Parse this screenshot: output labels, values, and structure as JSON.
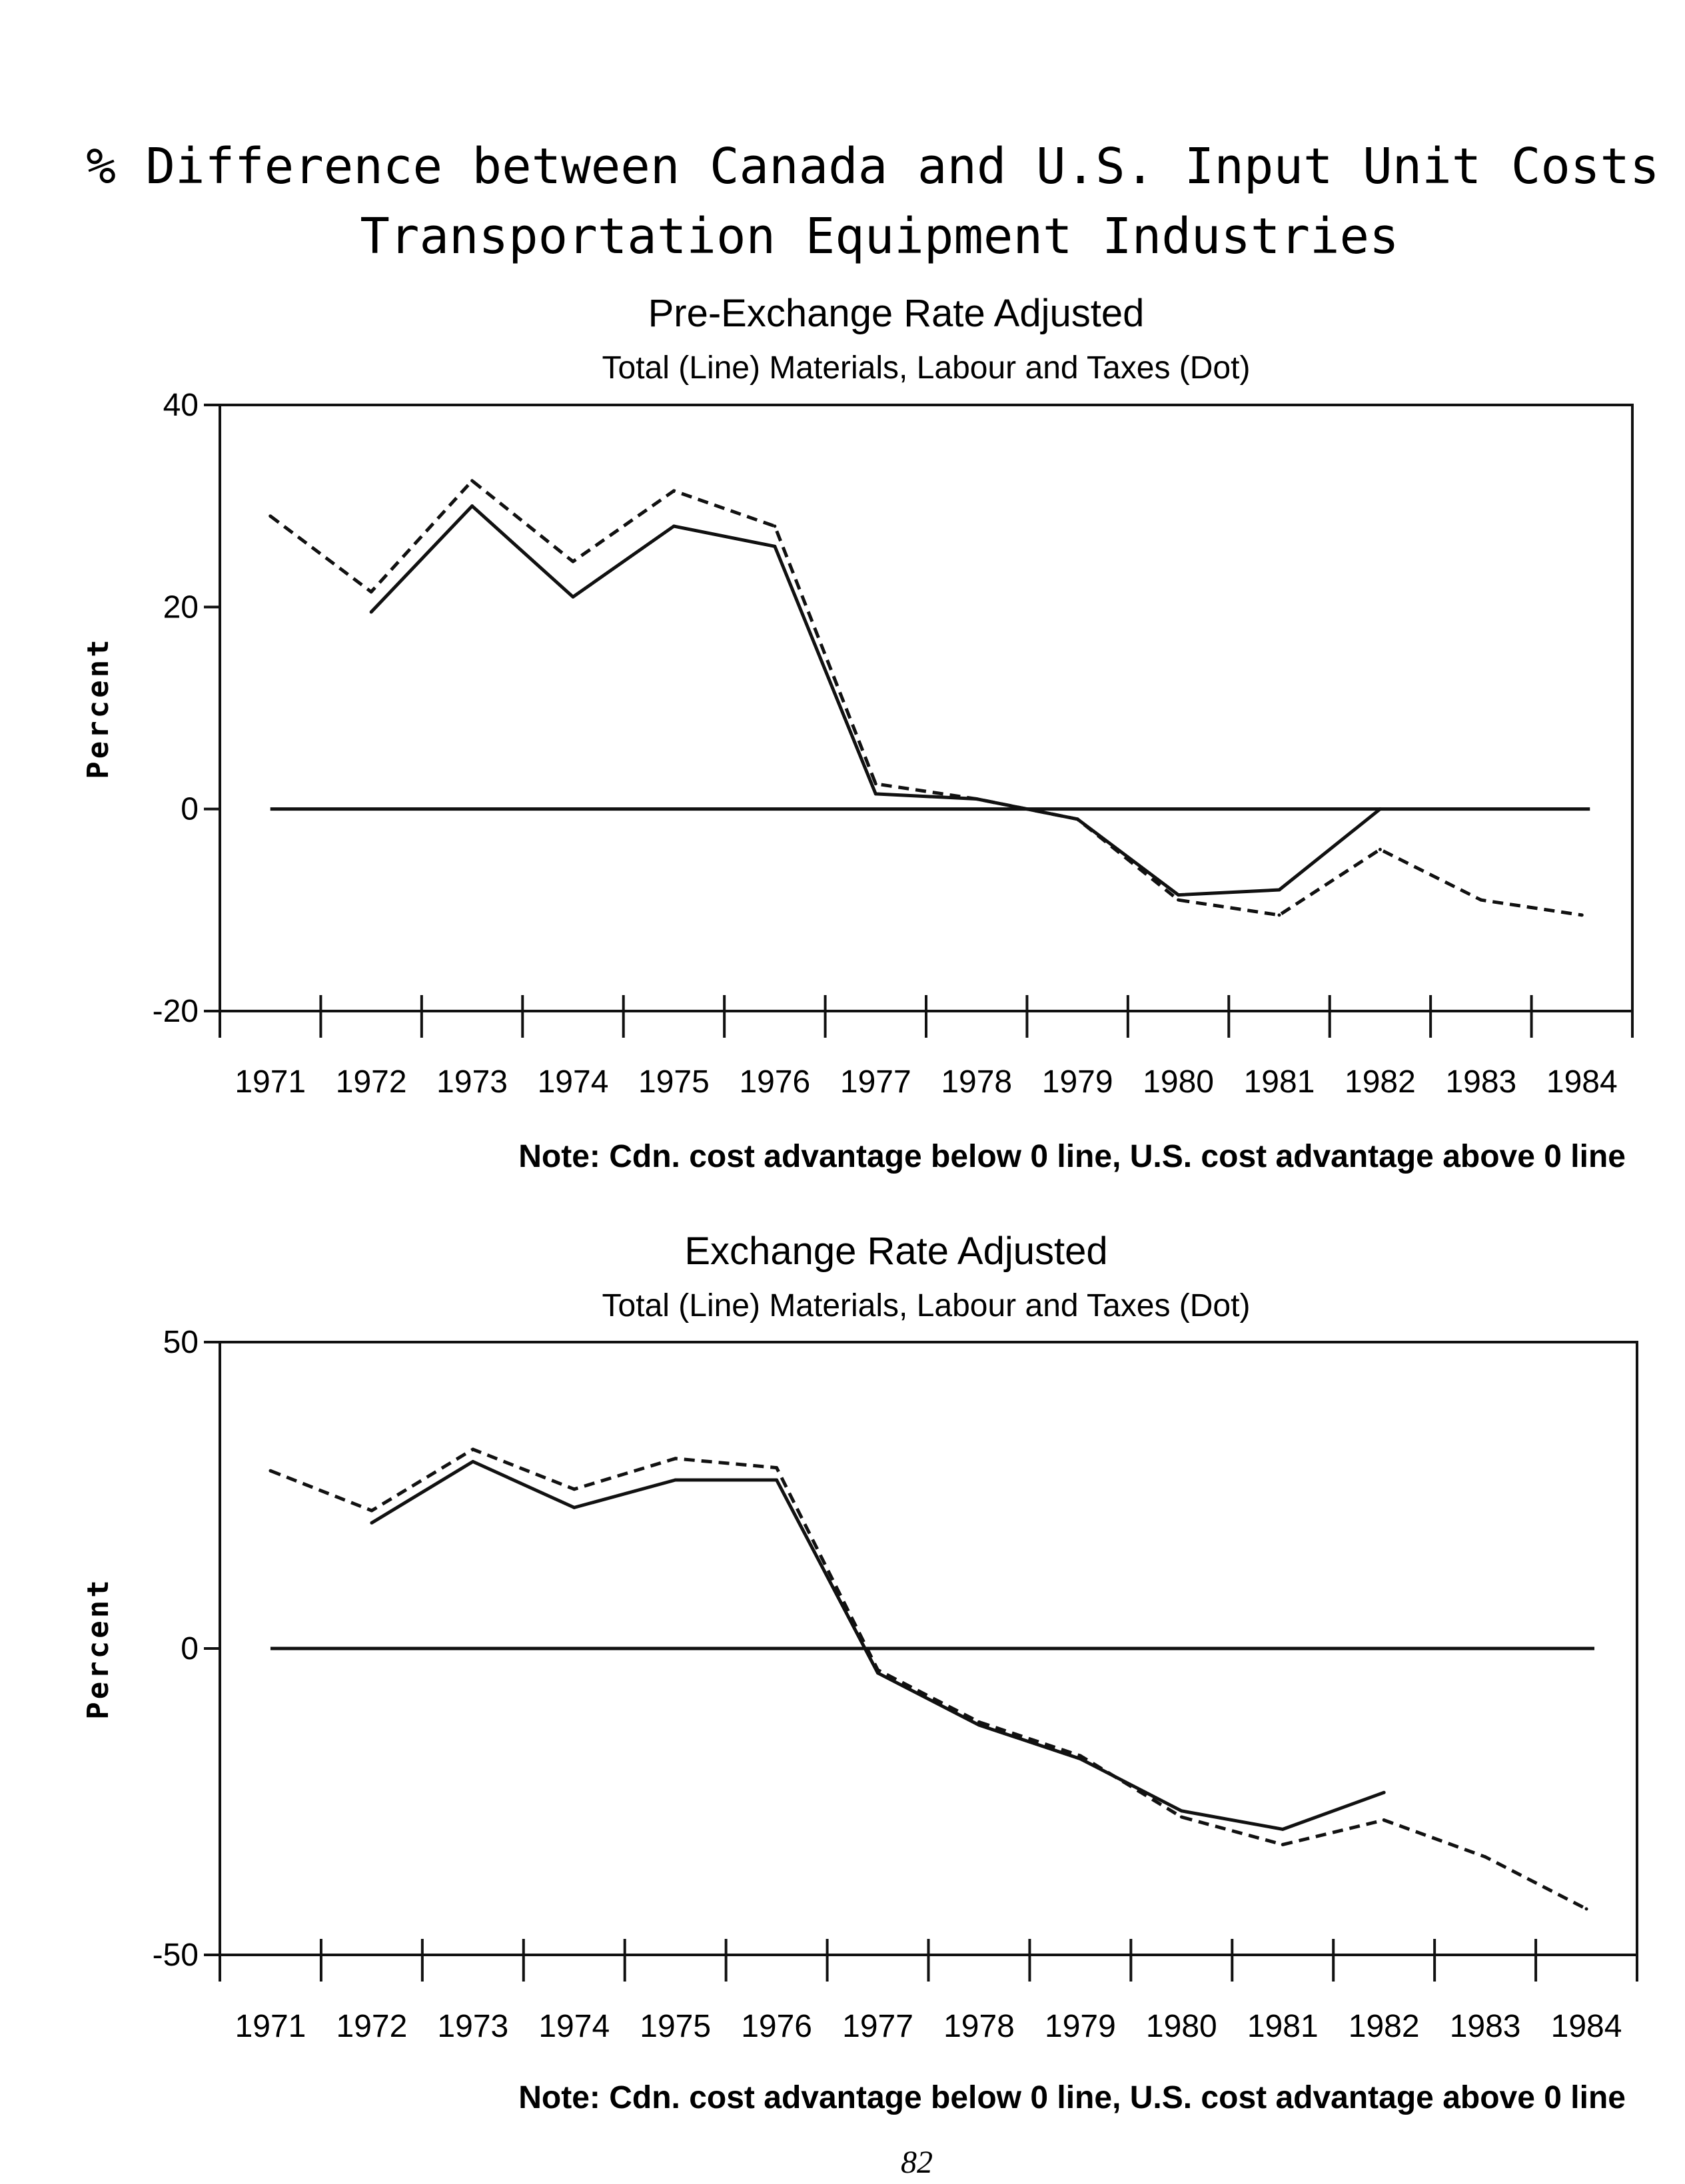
{
  "title_line1": "% Difference between Canada and U.S. Input Unit Costs",
  "title_line2": "Transportation Equipment Industries",
  "page_number": "82",
  "chart_data": [
    {
      "type": "line",
      "subtitle": "Pre-Exchange Rate Adjusted",
      "legend_text": "Total (Line)   Materials, Labour and Taxes (Dot)",
      "ylabel": "Percent",
      "ylim": [
        -20,
        40
      ],
      "yticks": [
        "40",
        "20",
        "0",
        "-20"
      ],
      "categories": [
        "1971",
        "1972",
        "1973",
        "1974",
        "1975",
        "1976",
        "1977",
        "1978",
        "1979",
        "1980",
        "1981",
        "1982",
        "1983",
        "1984"
      ],
      "zero_line": true,
      "series": [
        {
          "name": "Total (Line)",
          "style": "solid",
          "values": [
            null,
            19.5,
            30,
            21,
            28,
            26,
            1.5,
            1,
            -1,
            -8.5,
            -8,
            0,
            null,
            null
          ]
        },
        {
          "name": "Materials, Labour and Taxes (Dot)",
          "style": "dashed",
          "values": [
            29,
            21.5,
            32.5,
            24.5,
            31.5,
            28,
            2.5,
            1,
            -1,
            -9,
            -10.5,
            -4,
            -9,
            -10.5
          ]
        }
      ],
      "note": "Note: Cdn. cost advantage below 0 line, U.S. cost advantage above 0 line"
    },
    {
      "type": "line",
      "subtitle": "Exchange Rate Adjusted",
      "legend_text": "Total (Line)   Materials, Labour and Taxes (Dot)",
      "ylabel": "Percent",
      "ylim": [
        -50,
        50
      ],
      "yticks": [
        "50",
        "0",
        "-50"
      ],
      "categories": [
        "1971",
        "1972",
        "1973",
        "1974",
        "1975",
        "1976",
        "1977",
        "1978",
        "1979",
        "1980",
        "1981",
        "1982",
        "1983",
        "1984"
      ],
      "zero_line": true,
      "series": [
        {
          "name": "Total (Line)",
          "style": "solid",
          "values": [
            null,
            20.5,
            30.5,
            23,
            27.5,
            27.5,
            -4,
            -12.5,
            -18,
            -26.5,
            -29.5,
            -23.5,
            null,
            null
          ]
        },
        {
          "name": "Materials, Labour and Taxes (Dot)",
          "style": "dashed",
          "values": [
            29,
            22.5,
            32.5,
            26,
            31,
            29.5,
            -3.5,
            -12,
            -17.5,
            -27.5,
            -32,
            -28,
            -34,
            -42.5
          ]
        }
      ],
      "note": "Note: Cdn. cost advantage below 0 line, U.S. cost advantage above 0 line"
    }
  ]
}
